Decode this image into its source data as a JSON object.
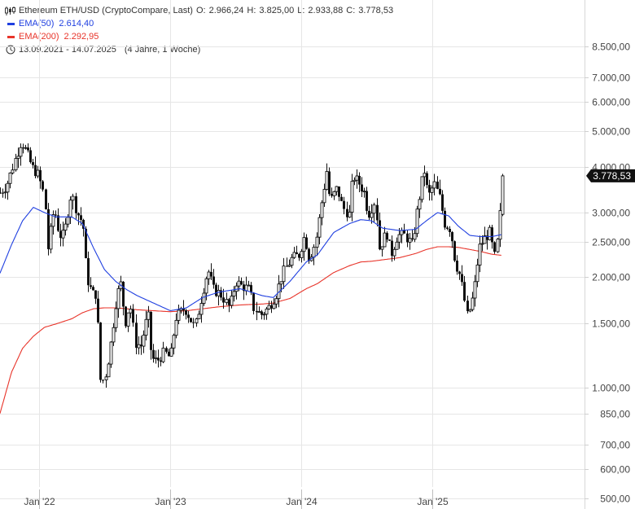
{
  "legend": {
    "instrument": "Ethereum ETH/USD (CryptoCompare, Last)",
    "ohlc": {
      "open_label": "O:",
      "open": "2.966,24",
      "high_label": "H:",
      "high": "3.825,00",
      "low_label": "L:",
      "low": "2.933,88",
      "close_label": "C:",
      "close": "3.778,53"
    },
    "ema50": {
      "label": "EMA(50)",
      "value": "2.614,40"
    },
    "ema200": {
      "label": "EMA(200)",
      "value": "2.292,95"
    },
    "range": "13.09.2021 - 14.07.2025",
    "duration": "(4 Jahre, 1 Woche)",
    "icons": {
      "chart": "candlestick-chart-icon",
      "time": "clock-icon"
    }
  },
  "colors": {
    "candle": "#111111",
    "ema50": "#1f3fe0",
    "ema200": "#e8342a",
    "grid": "#e6e6e6",
    "last_price_bg": "#111111",
    "last_price_text": "#ffffff"
  },
  "last_price": "3.778,53",
  "chart_data": {
    "type": "candlestick",
    "scale": "log",
    "ylim": [
      500,
      10000
    ],
    "y_ticks": [
      {
        "value": 8500,
        "label": "8.500,00"
      },
      {
        "value": 7000,
        "label": "7.000,00"
      },
      {
        "value": 6000,
        "label": "6.000,00"
      },
      {
        "value": 5000,
        "label": "5.000,00"
      },
      {
        "value": 4000,
        "label": "4.000,00"
      },
      {
        "value": 3000,
        "label": "3.000,00"
      },
      {
        "value": 2500,
        "label": "2.500,00"
      },
      {
        "value": 2000,
        "label": "2.000,00"
      },
      {
        "value": 1500,
        "label": "1.500,00"
      },
      {
        "value": 1000,
        "label": "1.000,00"
      },
      {
        "value": 850,
        "label": "850,00"
      },
      {
        "value": 700,
        "label": "700,00"
      },
      {
        "value": 600,
        "label": "600,00"
      },
      {
        "value": 500,
        "label": "500,00"
      }
    ],
    "x_ticks": [
      {
        "date": "2022-01",
        "label": "Jan '22"
      },
      {
        "date": "2023-01",
        "label": "Jan '23"
      },
      {
        "date": "2024-01",
        "label": "Jan '24"
      },
      {
        "date": "2025-01",
        "label": "Jan '25"
      }
    ],
    "x_range": [
      "2021-09-13",
      "2026-03-01"
    ],
    "close_path": [
      [
        "2021-09-13",
        3400
      ],
      [
        "2021-10-01",
        3550
      ],
      [
        "2021-10-20",
        4050
      ],
      [
        "2021-11-10",
        4700
      ],
      [
        "2021-11-25",
        4400
      ],
      [
        "2021-12-10",
        4000
      ],
      [
        "2021-12-28",
        3800
      ],
      [
        "2022-01-15",
        3300
      ],
      [
        "2022-01-24",
        2400
      ],
      [
        "2022-02-10",
        3100
      ],
      [
        "2022-02-25",
        2600
      ],
      [
        "2022-03-10",
        2600
      ],
      [
        "2022-03-30",
        3400
      ],
      [
        "2022-04-15",
        3000
      ],
      [
        "2022-05-01",
        2800
      ],
      [
        "2022-05-12",
        2000
      ],
      [
        "2022-05-28",
        1800
      ],
      [
        "2022-06-10",
        1800
      ],
      [
        "2022-06-18",
        1050
      ],
      [
        "2022-07-01",
        1050
      ],
      [
        "2022-07-15",
        1250
      ],
      [
        "2022-08-01",
        1700
      ],
      [
        "2022-08-14",
        1950
      ],
      [
        "2022-08-28",
        1500
      ],
      [
        "2022-09-10",
        1700
      ],
      [
        "2022-09-25",
        1320
      ],
      [
        "2022-10-10",
        1300
      ],
      [
        "2022-10-30",
        1600
      ],
      [
        "2022-11-09",
        1200
      ],
      [
        "2022-11-25",
        1180
      ],
      [
        "2022-12-15",
        1250
      ],
      [
        "2022-12-31",
        1200
      ],
      [
        "2023-01-15",
        1550
      ],
      [
        "2023-02-10",
        1650
      ],
      [
        "2023-03-10",
        1450
      ],
      [
        "2023-03-30",
        1800
      ],
      [
        "2023-04-15",
        2100
      ],
      [
        "2023-05-01",
        1850
      ],
      [
        "2023-05-20",
        1800
      ],
      [
        "2023-06-15",
        1650
      ],
      [
        "2023-07-01",
        1950
      ],
      [
        "2023-07-15",
        1900
      ],
      [
        "2023-08-10",
        1850
      ],
      [
        "2023-08-20",
        1650
      ],
      [
        "2023-09-10",
        1580
      ],
      [
        "2023-10-01",
        1650
      ],
      [
        "2023-10-23",
        1800
      ],
      [
        "2023-11-10",
        2050
      ],
      [
        "2023-12-05",
        2250
      ],
      [
        "2023-12-25",
        2300
      ],
      [
        "2024-01-10",
        2600
      ],
      [
        "2024-01-23",
        2250
      ],
      [
        "2024-02-10",
        2500
      ],
      [
        "2024-02-26",
        3200
      ],
      [
        "2024-03-12",
        3950
      ],
      [
        "2024-03-20",
        3200
      ],
      [
        "2024-04-10",
        3500
      ],
      [
        "2024-04-25",
        3100
      ],
      [
        "2024-05-15",
        2950
      ],
      [
        "2024-05-22",
        3800
      ],
      [
        "2024-06-10",
        3600
      ],
      [
        "2024-06-25",
        3400
      ],
      [
        "2024-07-05",
        2950
      ],
      [
        "2024-07-25",
        3250
      ],
      [
        "2024-08-05",
        2400
      ],
      [
        "2024-08-25",
        2650
      ],
      [
        "2024-09-07",
        2300
      ],
      [
        "2024-09-25",
        2600
      ],
      [
        "2024-10-15",
        2600
      ],
      [
        "2024-11-05",
        2450
      ],
      [
        "2024-11-20",
        3100
      ],
      [
        "2024-12-08",
        3950
      ],
      [
        "2024-12-20",
        3300
      ],
      [
        "2025-01-05",
        3600
      ],
      [
        "2025-01-20",
        3300
      ],
      [
        "2025-02-03",
        2800
      ],
      [
        "2025-02-20",
        2700
      ],
      [
        "2025-03-05",
        2200
      ],
      [
        "2025-03-20",
        2000
      ],
      [
        "2025-04-08",
        1550
      ],
      [
        "2025-04-25",
        1800
      ],
      [
        "2025-05-10",
        2400
      ],
      [
        "2025-05-25",
        2550
      ],
      [
        "2025-06-10",
        2650
      ],
      [
        "2025-06-22",
        2250
      ],
      [
        "2025-07-02",
        2550
      ],
      [
        "2025-07-07",
        2966
      ],
      [
        "2025-07-14",
        3778
      ]
    ],
    "ema50_path": [
      [
        "2021-09-13",
        2050
      ],
      [
        "2021-10-15",
        2450
      ],
      [
        "2021-11-15",
        2850
      ],
      [
        "2021-12-15",
        3100
      ],
      [
        "2022-01-15",
        3000
      ],
      [
        "2022-02-15",
        2920
      ],
      [
        "2022-04-01",
        2920
      ],
      [
        "2022-05-01",
        2800
      ],
      [
        "2022-06-01",
        2400
      ],
      [
        "2022-07-01",
        2100
      ],
      [
        "2022-08-01",
        1950
      ],
      [
        "2022-09-01",
        1850
      ],
      [
        "2022-10-01",
        1780
      ],
      [
        "2022-11-15",
        1700
      ],
      [
        "2023-01-01",
        1620
      ],
      [
        "2023-02-15",
        1650
      ],
      [
        "2023-04-01",
        1760
      ],
      [
        "2023-05-15",
        1820
      ],
      [
        "2023-07-15",
        1860
      ],
      [
        "2023-09-15",
        1780
      ],
      [
        "2023-10-15",
        1760
      ],
      [
        "2023-12-01",
        1950
      ],
      [
        "2024-01-15",
        2200
      ],
      [
        "2024-02-15",
        2300
      ],
      [
        "2024-04-01",
        2650
      ],
      [
        "2024-05-15",
        2800
      ],
      [
        "2024-06-15",
        2870
      ],
      [
        "2024-07-15",
        2850
      ],
      [
        "2024-08-15",
        2720
      ],
      [
        "2024-10-01",
        2680
      ],
      [
        "2024-11-15",
        2700
      ],
      [
        "2024-12-15",
        2850
      ],
      [
        "2025-01-15",
        3000
      ],
      [
        "2025-02-15",
        2940
      ],
      [
        "2025-03-15",
        2750
      ],
      [
        "2025-04-15",
        2600
      ],
      [
        "2025-05-15",
        2580
      ],
      [
        "2025-06-15",
        2580
      ],
      [
        "2025-07-14",
        2614
      ]
    ],
    "ema200_path": [
      [
        "2021-09-13",
        850
      ],
      [
        "2021-10-15",
        1100
      ],
      [
        "2021-11-15",
        1280
      ],
      [
        "2021-12-15",
        1380
      ],
      [
        "2022-01-15",
        1460
      ],
      [
        "2022-02-15",
        1490
      ],
      [
        "2022-04-01",
        1540
      ],
      [
        "2022-05-01",
        1600
      ],
      [
        "2022-06-01",
        1640
      ],
      [
        "2022-07-01",
        1650
      ],
      [
        "2022-08-01",
        1650
      ],
      [
        "2022-09-01",
        1640
      ],
      [
        "2022-10-01",
        1630
      ],
      [
        "2022-11-15",
        1620
      ],
      [
        "2023-01-01",
        1610
      ],
      [
        "2023-02-15",
        1620
      ],
      [
        "2023-04-01",
        1640
      ],
      [
        "2023-05-15",
        1660
      ],
      [
        "2023-07-15",
        1680
      ],
      [
        "2023-09-15",
        1690
      ],
      [
        "2023-10-15",
        1700
      ],
      [
        "2023-12-01",
        1750
      ],
      [
        "2024-01-15",
        1860
      ],
      [
        "2024-02-15",
        1920
      ],
      [
        "2024-04-01",
        2060
      ],
      [
        "2024-05-15",
        2150
      ],
      [
        "2024-06-15",
        2200
      ],
      [
        "2024-07-15",
        2210
      ],
      [
        "2024-08-15",
        2230
      ],
      [
        "2024-10-01",
        2260
      ],
      [
        "2024-11-15",
        2320
      ],
      [
        "2024-12-15",
        2380
      ],
      [
        "2025-01-15",
        2420
      ],
      [
        "2025-02-15",
        2420
      ],
      [
        "2025-03-15",
        2410
      ],
      [
        "2025-04-15",
        2380
      ],
      [
        "2025-05-15",
        2350
      ],
      [
        "2025-06-15",
        2310
      ],
      [
        "2025-07-14",
        2293
      ]
    ]
  }
}
